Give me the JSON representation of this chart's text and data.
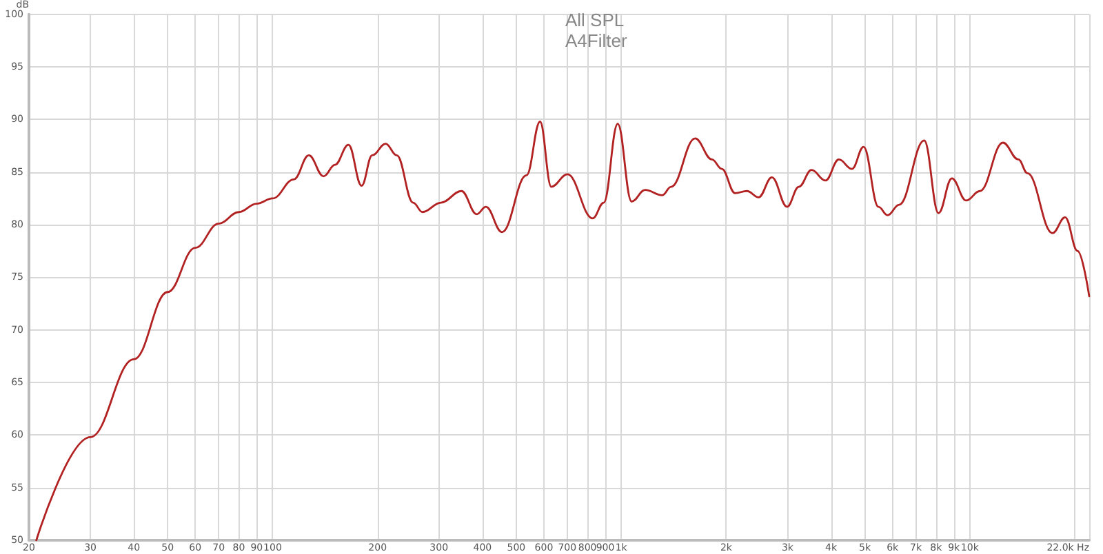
{
  "chart_data": {
    "type": "line",
    "title": "All SPL",
    "subtitle": "A4Filter",
    "ylabel": "dB",
    "log": "x",
    "grid": true,
    "marker": "none",
    "line_style": "solid",
    "xlim": [
      20,
      22000
    ],
    "ylim": [
      50,
      100
    ],
    "xticks": [
      20,
      30,
      40,
      50,
      60,
      70,
      80,
      90,
      100,
      200,
      300,
      400,
      500,
      600,
      700,
      800,
      900,
      {
        "value": 1000,
        "label": "1k"
      },
      {
        "value": 2000,
        "label": "2k"
      },
      {
        "value": 3000,
        "label": "3k"
      },
      {
        "value": 4000,
        "label": "4k"
      },
      {
        "value": 5000,
        "label": "5k"
      },
      {
        "value": 6000,
        "label": "6k"
      },
      {
        "value": 7000,
        "label": "7k"
      },
      {
        "value": 8000,
        "label": "8k"
      },
      {
        "value": 9000,
        "label": "9k"
      },
      {
        "value": 10000,
        "label": "10k"
      },
      {
        "value": 20000,
        "label": null
      },
      {
        "value": 22000,
        "label": "22.0k Hz"
      }
    ],
    "yticks": [
      50,
      55,
      60,
      65,
      70,
      75,
      80,
      85,
      90,
      95,
      100
    ],
    "series": [
      {
        "color": "#b22222",
        "x": [
          21,
          30,
          40,
          50,
          60,
          70,
          80,
          90,
          100,
          115,
          127,
          140,
          151,
          165,
          180,
          193,
          211,
          227,
          253,
          269,
          304,
          348,
          385,
          409,
          455,
          535,
          585,
          630,
          701,
          828,
          891,
          977,
          1071,
          1171,
          1311,
          1390,
          1629,
          1821,
          1943,
          2122,
          2294,
          2478,
          2705,
          2990,
          3232,
          3515,
          3853,
          4210,
          4590,
          4958,
          5467,
          5807,
          6270,
          7400,
          8130,
          8880,
          9760,
          10690,
          12440,
          13780,
          14630,
          17260,
          18760,
          20370,
          22000
        ],
        "values": [
          50,
          59.8,
          67.2,
          73.6,
          77.8,
          80.1,
          81.2,
          82,
          82.5,
          84.3,
          86.6,
          84.6,
          85.7,
          87.6,
          83.7,
          86.6,
          87.7,
          86.6,
          82.1,
          81.2,
          82.1,
          83.2,
          81,
          81.7,
          79.3,
          84.7,
          89.8,
          83.6,
          84.8,
          80.6,
          82.1,
          89.6,
          82.2,
          83.3,
          82.8,
          83.6,
          88.2,
          86.2,
          85.3,
          83,
          83.2,
          82.6,
          84.5,
          81.7,
          83.6,
          85.2,
          84.2,
          86.2,
          85.3,
          87.4,
          81.7,
          80.9,
          81.9,
          88,
          81.1,
          84.4,
          82.3,
          83.2,
          87.8,
          86.2,
          84.9,
          79.2,
          80.7,
          77.5,
          73.2
        ]
      }
    ]
  }
}
